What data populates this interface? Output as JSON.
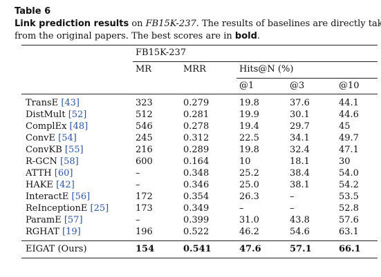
{
  "caption": {
    "label": "Table 6",
    "bold_lead": "Link prediction results",
    "text1": " on ",
    "dataset": "FB15K-237",
    "text2": ". The results of baselines are directly taken",
    "line2_a": "from the original papers. The best scores are in ",
    "line2_bold": "bold",
    "line2_b": "."
  },
  "header": {
    "dataset": "FB15K-237",
    "mr": "MR",
    "mrr": "MRR",
    "hits": "Hits@N (%)",
    "h1": "@1",
    "h3": "@3",
    "h10": "@10"
  },
  "rows": [
    {
      "model": "TransE",
      "ref": "[43]",
      "mr": "323",
      "mrr": "0.279",
      "h1": "19.8",
      "h3": "37.6",
      "h10": "44.1"
    },
    {
      "model": "DistMult",
      "ref": "[52]",
      "mr": "512",
      "mrr": "0.281",
      "h1": "19.9",
      "h3": "30.1",
      "h10": "44.6"
    },
    {
      "model": "ComplEx",
      "ref": "[48]",
      "mr": "546",
      "mrr": "0.278",
      "h1": "19.4",
      "h3": "29.7",
      "h10": "45"
    },
    {
      "model": "ConvE",
      "ref": "[54]",
      "mr": "245",
      "mrr": "0.312",
      "h1": "22.5",
      "h3": "34.1",
      "h10": "49.7"
    },
    {
      "model": "ConvKB",
      "ref": "[55]",
      "mr": "216",
      "mrr": "0.289",
      "h1": "19.8",
      "h3": "32.4",
      "h10": "47.1"
    },
    {
      "model": "R-GCN",
      "ref": "[58]",
      "mr": "600",
      "mrr": "0.164",
      "h1": "10",
      "h3": "18.1",
      "h10": "30"
    },
    {
      "model": "ATTH",
      "ref": "[60]",
      "mr": "–",
      "mrr": "0.348",
      "h1": "25.2",
      "h3": "38.4",
      "h10": "54.0"
    },
    {
      "model": "HAKE",
      "ref": "[42]",
      "mr": "–",
      "mrr": "0.346",
      "h1": "25.0",
      "h3": "38.1",
      "h10": "54.2"
    },
    {
      "model": "InteractE",
      "ref": "[56]",
      "mr": "172",
      "mrr": "0.354",
      "h1": "26.3",
      "h3": "–",
      "h10": "53.5"
    },
    {
      "model": "ReInceptionE",
      "ref": "[25]",
      "mr": "173",
      "mrr": "0.349",
      "h1": "–",
      "h3": "–",
      "h10": "52.8"
    },
    {
      "model": "ParamE",
      "ref": "[57]",
      "mr": "–",
      "mrr": "0.399",
      "h1": "31.0",
      "h3": "43.8",
      "h10": "57.6"
    },
    {
      "model": "RGHAT",
      "ref": "[19]",
      "mr": "196",
      "mrr": "0.522",
      "h1": "46.2",
      "h3": "54.6",
      "h10": "63.1"
    }
  ],
  "ours": {
    "model": "EIGAT (Ours)",
    "mr": "154",
    "mrr": "0.541",
    "h1": "47.6",
    "h3": "57.1",
    "h10": "66.1"
  }
}
